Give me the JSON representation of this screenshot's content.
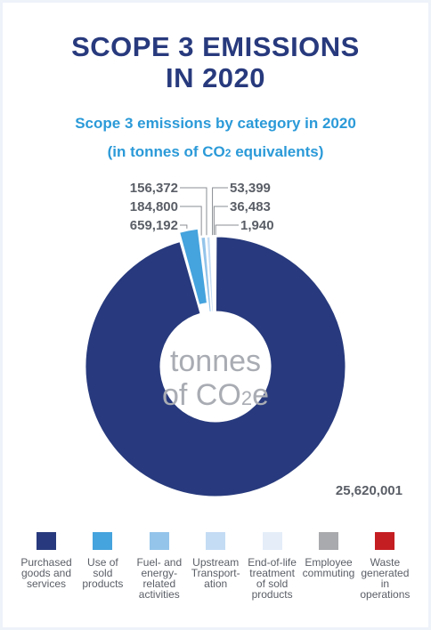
{
  "header": {
    "title_line1": "SCOPE 3 EMISSIONS",
    "title_line2": "IN 2020",
    "subtitle_line1": "Scope 3 emissions by category in 2020",
    "subtitle_line2_pre": "(in tonnes of CO",
    "subtitle_line2_sub": "2",
    "subtitle_line2_post": " equivalents)"
  },
  "center": {
    "line1": "tonnes",
    "line2_pre": "of CO",
    "line2_sub": "2",
    "line2_post": "e"
  },
  "chart_data": {
    "type": "pie",
    "style": "donut",
    "title": "Scope 3 emissions by category in 2020",
    "categories": [
      "Purchased goods and services",
      "Use of sold products",
      "Fuel- and energy-related activities",
      "Upstream Transportation",
      "End-of-life treatment of sold products",
      "Employee commuting",
      "Waste generated in operations"
    ],
    "values": [
      25620001,
      659192,
      184800,
      156372,
      53399,
      36483,
      1940
    ],
    "value_labels": [
      "25,620,001",
      "659,192",
      "184,800",
      "156,372",
      "53,399",
      "36,483",
      "1,940"
    ],
    "colors": [
      "#283a7d",
      "#45a3dd",
      "#94c4ea",
      "#c4dcf4",
      "#e4edf8",
      "#a9aaad",
      "#c41e22"
    ],
    "exploded_slice": "Use of sold products"
  },
  "legend": [
    {
      "label": "Purchased\ngoods and\nservices",
      "color": "#283a7d"
    },
    {
      "label": "Use of\nsold\nproducts",
      "color": "#45a3dd"
    },
    {
      "label": "Fuel- and\nenergy-\nrelated\nactivities",
      "color": "#94c4ea"
    },
    {
      "label": "Upstream\nTransport-\nation",
      "color": "#c4dcf4"
    },
    {
      "label": "End-of-life\ntreatment\nof sold\nproducts",
      "color": "#e4edf8"
    },
    {
      "label": "Employee\ncommuting",
      "color": "#a9aaad"
    },
    {
      "label": "Waste\ngenerated\nin\noperations",
      "color": "#c41e22"
    }
  ]
}
